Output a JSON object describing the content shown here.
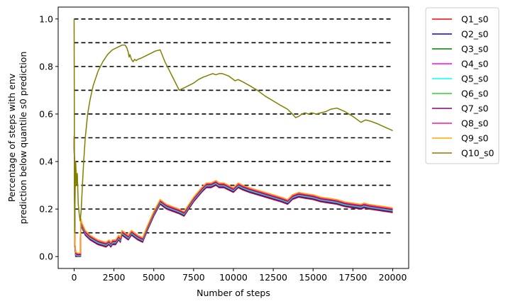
{
  "chart_data": {
    "type": "line",
    "title": "",
    "xlabel": "Number of steps",
    "ylabel_line1": "Percentage of steps with env",
    "ylabel_line2": "prediction below quantile s0 prediction",
    "xlim": [
      -1000,
      21000
    ],
    "ylim": [
      -0.05,
      1.05
    ],
    "x_ticks": [
      0,
      2500,
      5000,
      7500,
      10000,
      12500,
      15000,
      17500,
      20000
    ],
    "x_tick_labels": [
      "0",
      "2500",
      "5000",
      "7500",
      "10000",
      "12500",
      "15000",
      "17500",
      "20000"
    ],
    "y_ticks": [
      0.0,
      0.2,
      0.4,
      0.6,
      0.8,
      1.0
    ],
    "y_tick_labels": [
      "0.0",
      "0.2",
      "0.4",
      "0.6",
      "0.8",
      "1.0"
    ],
    "grid": false,
    "legend_placement": "outside-right-top",
    "reference_lines": {
      "y": [
        0.1,
        0.2,
        0.3,
        0.4,
        0.5,
        0.6,
        0.7,
        0.8,
        0.9,
        1.0
      ],
      "x_range": [
        0,
        20000
      ],
      "style": "dashed",
      "color": "#000000"
    },
    "base_curve": {
      "x": [
        0,
        20,
        50,
        100,
        200,
        300,
        400,
        420,
        500,
        700,
        1000,
        1500,
        2000,
        2200,
        2300,
        2400,
        2600,
        2800,
        2900,
        3000,
        3200,
        3400,
        3600,
        3800,
        4000,
        4300,
        4600,
        5000,
        5400,
        5800,
        6200,
        6600,
        6900,
        7100,
        7500,
        8000,
        8300,
        8600,
        8900,
        9100,
        9400,
        9700,
        10000,
        10300,
        10600,
        11000,
        11500,
        12000,
        12500,
        13000,
        13400,
        13700,
        14100,
        14500,
        15000,
        15500,
        16000,
        16500,
        17000,
        17500,
        18000,
        18200,
        18500,
        19000,
        19500,
        20000
      ],
      "values": [
        0.5,
        0.4,
        0.05,
        0.01,
        0.005,
        0.005,
        0.005,
        0.15,
        0.13,
        0.1,
        0.08,
        0.06,
        0.05,
        0.06,
        0.05,
        0.06,
        0.06,
        0.08,
        0.07,
        0.1,
        0.09,
        0.08,
        0.1,
        0.09,
        0.08,
        0.07,
        0.12,
        0.18,
        0.23,
        0.21,
        0.2,
        0.19,
        0.18,
        0.2,
        0.24,
        0.28,
        0.3,
        0.3,
        0.31,
        0.3,
        0.3,
        0.29,
        0.28,
        0.3,
        0.29,
        0.28,
        0.27,
        0.26,
        0.25,
        0.24,
        0.23,
        0.25,
        0.26,
        0.255,
        0.25,
        0.24,
        0.235,
        0.23,
        0.22,
        0.215,
        0.21,
        0.215,
        0.21,
        0.205,
        0.2,
        0.195
      ]
    },
    "series": [
      {
        "name": "Q1_s0",
        "color": "#ff0000",
        "offset": -0.01
      },
      {
        "name": "Q2_s0",
        "color": "#0000ff",
        "offset": -0.007
      },
      {
        "name": "Q3_s0",
        "color": "#008000",
        "offset": -0.005
      },
      {
        "name": "Q4_s0",
        "color": "#ff00ff",
        "offset": -0.003
      },
      {
        "name": "Q5_s0",
        "color": "#00ffff",
        "offset": -0.001
      },
      {
        "name": "Q6_s0",
        "color": "#32cd32",
        "offset": 0.001
      },
      {
        "name": "Q7_s0",
        "color": "#800080",
        "offset": 0.003
      },
      {
        "name": "Q8_s0",
        "color": "#ff1493",
        "offset": 0.006
      },
      {
        "name": "Q9_s0",
        "color": "#ffa500",
        "offset": 0.01
      },
      {
        "name": "Q10_s0",
        "color": "#808000",
        "x": [
          0,
          30,
          60,
          100,
          150,
          200,
          260,
          320,
          380,
          450,
          520,
          600,
          700,
          850,
          1000,
          1200,
          1500,
          1800,
          2100,
          2400,
          2700,
          3000,
          3200,
          3300,
          3400,
          3450,
          3500,
          3600,
          3700,
          3800,
          3900,
          4000,
          4200,
          4500,
          4800,
          5100,
          5400,
          5700,
          6000,
          6300,
          6600,
          6900,
          7200,
          7500,
          7800,
          8100,
          8300,
          8500,
          8700,
          8900,
          9100,
          9300,
          9500,
          9700,
          9900,
          10100,
          10300,
          10600,
          11000,
          11500,
          12000,
          12500,
          13000,
          13400,
          13700,
          13900,
          14100,
          14300,
          14500,
          14700,
          14900,
          15200,
          15500,
          15800,
          16100,
          16500,
          17000,
          17500,
          18000,
          18300,
          18600,
          19000,
          19500,
          20000
        ],
        "values": [
          1.0,
          0.1,
          0.25,
          0.4,
          0.3,
          0.35,
          0.22,
          0.18,
          0.15,
          0.2,
          0.3,
          0.4,
          0.5,
          0.6,
          0.66,
          0.72,
          0.78,
          0.82,
          0.85,
          0.87,
          0.88,
          0.89,
          0.89,
          0.88,
          0.86,
          0.84,
          0.85,
          0.83,
          0.82,
          0.83,
          0.825,
          0.83,
          0.835,
          0.845,
          0.855,
          0.865,
          0.87,
          0.82,
          0.78,
          0.74,
          0.7,
          0.71,
          0.72,
          0.73,
          0.745,
          0.755,
          0.76,
          0.765,
          0.77,
          0.765,
          0.77,
          0.77,
          0.765,
          0.76,
          0.75,
          0.74,
          0.745,
          0.735,
          0.72,
          0.7,
          0.675,
          0.655,
          0.635,
          0.62,
          0.6,
          0.585,
          0.59,
          0.6,
          0.605,
          0.6,
          0.605,
          0.6,
          0.605,
          0.61,
          0.62,
          0.625,
          0.61,
          0.59,
          0.565,
          0.575,
          0.57,
          0.56,
          0.545,
          0.53
        ]
      }
    ]
  }
}
